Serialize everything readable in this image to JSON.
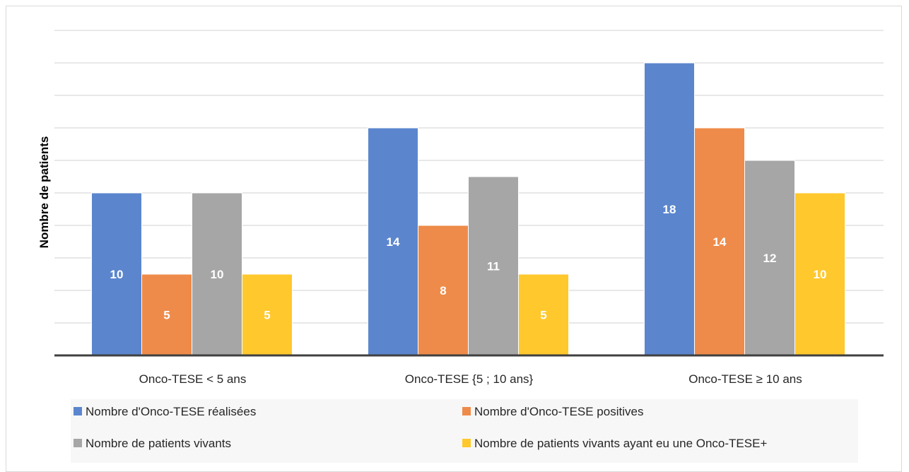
{
  "chart_data": {
    "type": "bar",
    "ylabel": "Nombre de patients",
    "xlabel": "",
    "title": "",
    "categories": [
      "Onco-TESE < 5 ans",
      "Onco-TESE {5 ; 10 ans}",
      "Onco-TESE ≥ 10 ans"
    ],
    "ylim": [
      0,
      20
    ],
    "grid": true,
    "legend_position": "bottom",
    "series": [
      {
        "name": "Nombre d'Onco-TESE réalisées",
        "color": "#5b86ce",
        "values": [
          10,
          14,
          18
        ]
      },
      {
        "name": "Nombre d'Onco-TESE positives",
        "color": "#ee8b4a",
        "values": [
          5,
          8,
          14
        ]
      },
      {
        "name": "Nombre de patients vivants",
        "color": "#a6a6a6",
        "values": [
          10,
          11,
          12
        ]
      },
      {
        "name": "Nombre de patients vivants ayant eu une Onco-TESE+",
        "color": "#ffc82c",
        "values": [
          5,
          5,
          10
        ]
      }
    ]
  }
}
